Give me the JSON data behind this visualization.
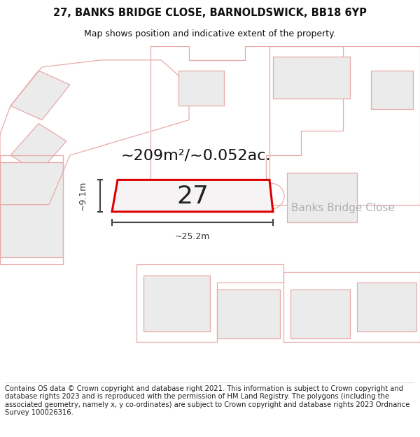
{
  "title_line1": "27, BANKS BRIDGE CLOSE, BARNOLDSWICK, BB18 6YP",
  "title_line2": "Map shows position and indicative extent of the property.",
  "area_text": "~209m²/~0.052ac.",
  "label_27": "27",
  "label_street": "Banks Bridge Close",
  "dim_width": "~25.2m",
  "dim_height": "~9.1m",
  "footer_text": "Contains OS data © Crown copyright and database right 2021. This information is subject to Crown copyright and database rights 2023 and is reproduced with the permission of HM Land Registry. The polygons (including the associated geometry, namely x, y co-ordinates) are subject to Crown copyright and database rights 2023 Ordnance Survey 100026316.",
  "bg_color": "#ffffff",
  "map_bg": "#ffffff",
  "plot_fill": "#f5f3f3",
  "plot_border": "#dd0000",
  "neighbor_fill": "#ebebeb",
  "neighbor_border": "#e8aaaa",
  "title_fontsize": 10.5,
  "subtitle_fontsize": 9,
  "footer_fontsize": 7.2,
  "area_fontsize": 16,
  "label_fontsize": 26,
  "street_fontsize": 11,
  "dim_fontsize": 9
}
